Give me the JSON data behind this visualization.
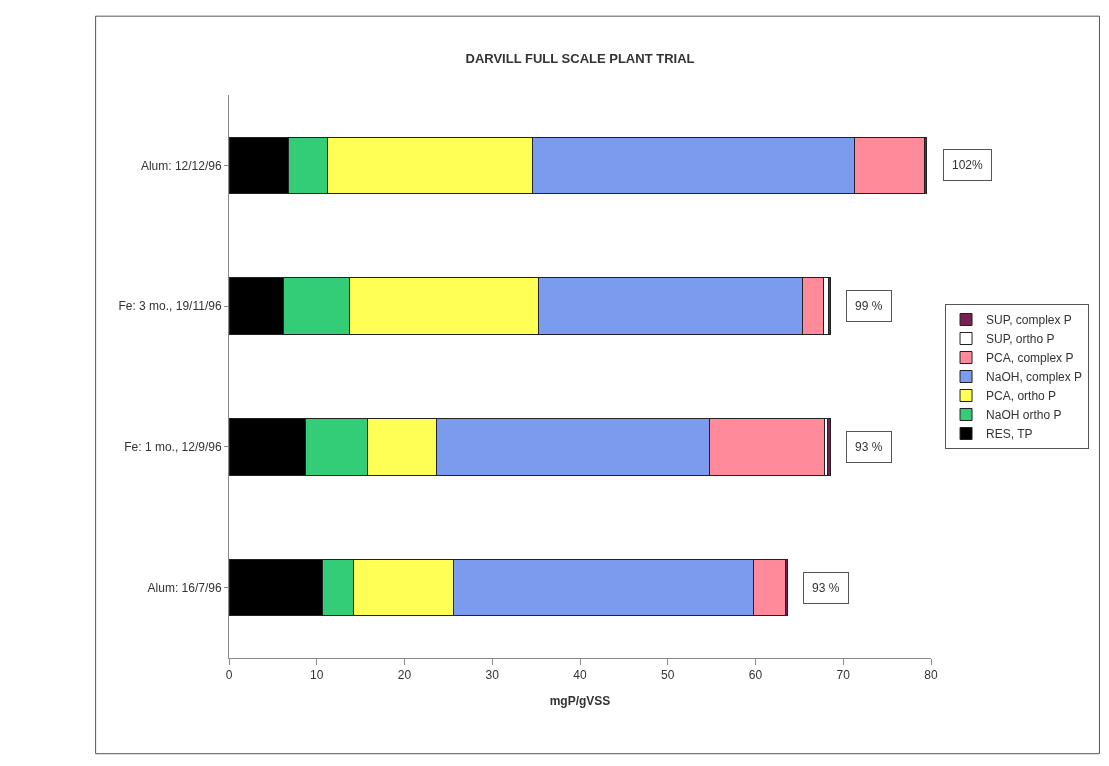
{
  "chart_data": {
    "type": "bar",
    "orientation": "horizontal",
    "stacked": true,
    "title": "DARVILL FULL SCALE PLANT TRIAL",
    "xlabel": "mgP/gVSS",
    "categories": [
      "Alum: 12/12/96",
      "Fe: 3 mo., 19/11/96",
      "Fe: 1 mo., 12/9/96",
      "Alum: 16/7/96"
    ],
    "series": [
      {
        "name": "RES, TP",
        "color": "#000000",
        "values": [
          6.8,
          6.2,
          8.7,
          10.6
        ]
      },
      {
        "name": "NaOH ortho P",
        "color": "#33cc77",
        "values": [
          4.4,
          7.5,
          7.1,
          3.6
        ]
      },
      {
        "name": "PCA, ortho P",
        "color": "#ffff55",
        "values": [
          23.4,
          21.6,
          7.8,
          11.4
        ]
      },
      {
        "name": "NaOH, complex P",
        "color": "#7b9bef",
        "values": [
          36.7,
          30.0,
          31.2,
          34.2
        ]
      },
      {
        "name": "PCA, complex P",
        "color": "#ff8a9a",
        "values": [
          8.0,
          2.4,
          13.1,
          3.6
        ]
      },
      {
        "name": "SUP, ortho P",
        "color": "#ffffff",
        "values": [
          0,
          0.6,
          0.3,
          0
        ]
      },
      {
        "name": "SUP, complex P",
        "color": "#7a2050",
        "values": [
          0.2,
          0.2,
          0.3,
          0.2
        ]
      }
    ],
    "xlim": [
      0,
      80
    ],
    "xticks": [
      0,
      10,
      20,
      30,
      40,
      50,
      60,
      70,
      80
    ],
    "annotations": [
      "102%",
      "99 %",
      "93 %",
      "93 %"
    ],
    "legend": "right"
  }
}
